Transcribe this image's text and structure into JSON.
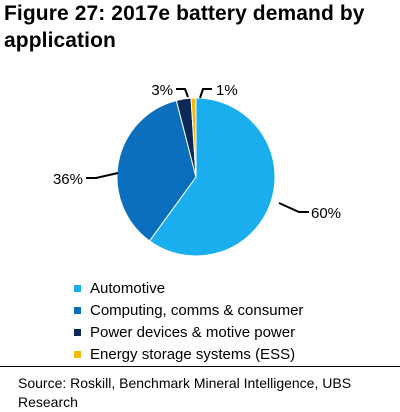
{
  "figure": {
    "title": "Figure 27: 2017e battery demand by application",
    "source": "Source:  Roskill, Benchmark Mineral Intelligence, UBS Research"
  },
  "chart_data": {
    "type": "pie",
    "title": "Figure 27: 2017e battery demand by application",
    "legend_position": "bottom",
    "slices": [
      {
        "label": "Automotive",
        "value": 60,
        "value_label": "60%",
        "color": "#1aaeef"
      },
      {
        "label": "Computing, comms & consumer",
        "value": 36,
        "value_label": "36%",
        "color": "#0b6fbd"
      },
      {
        "label": "Power devices & motive power",
        "value": 3,
        "value_label": "3%",
        "color": "#0c2856"
      },
      {
        "label": "Energy storage systems (ESS)",
        "value": 1,
        "value_label": "1%",
        "color": "#f5b80c"
      }
    ]
  }
}
